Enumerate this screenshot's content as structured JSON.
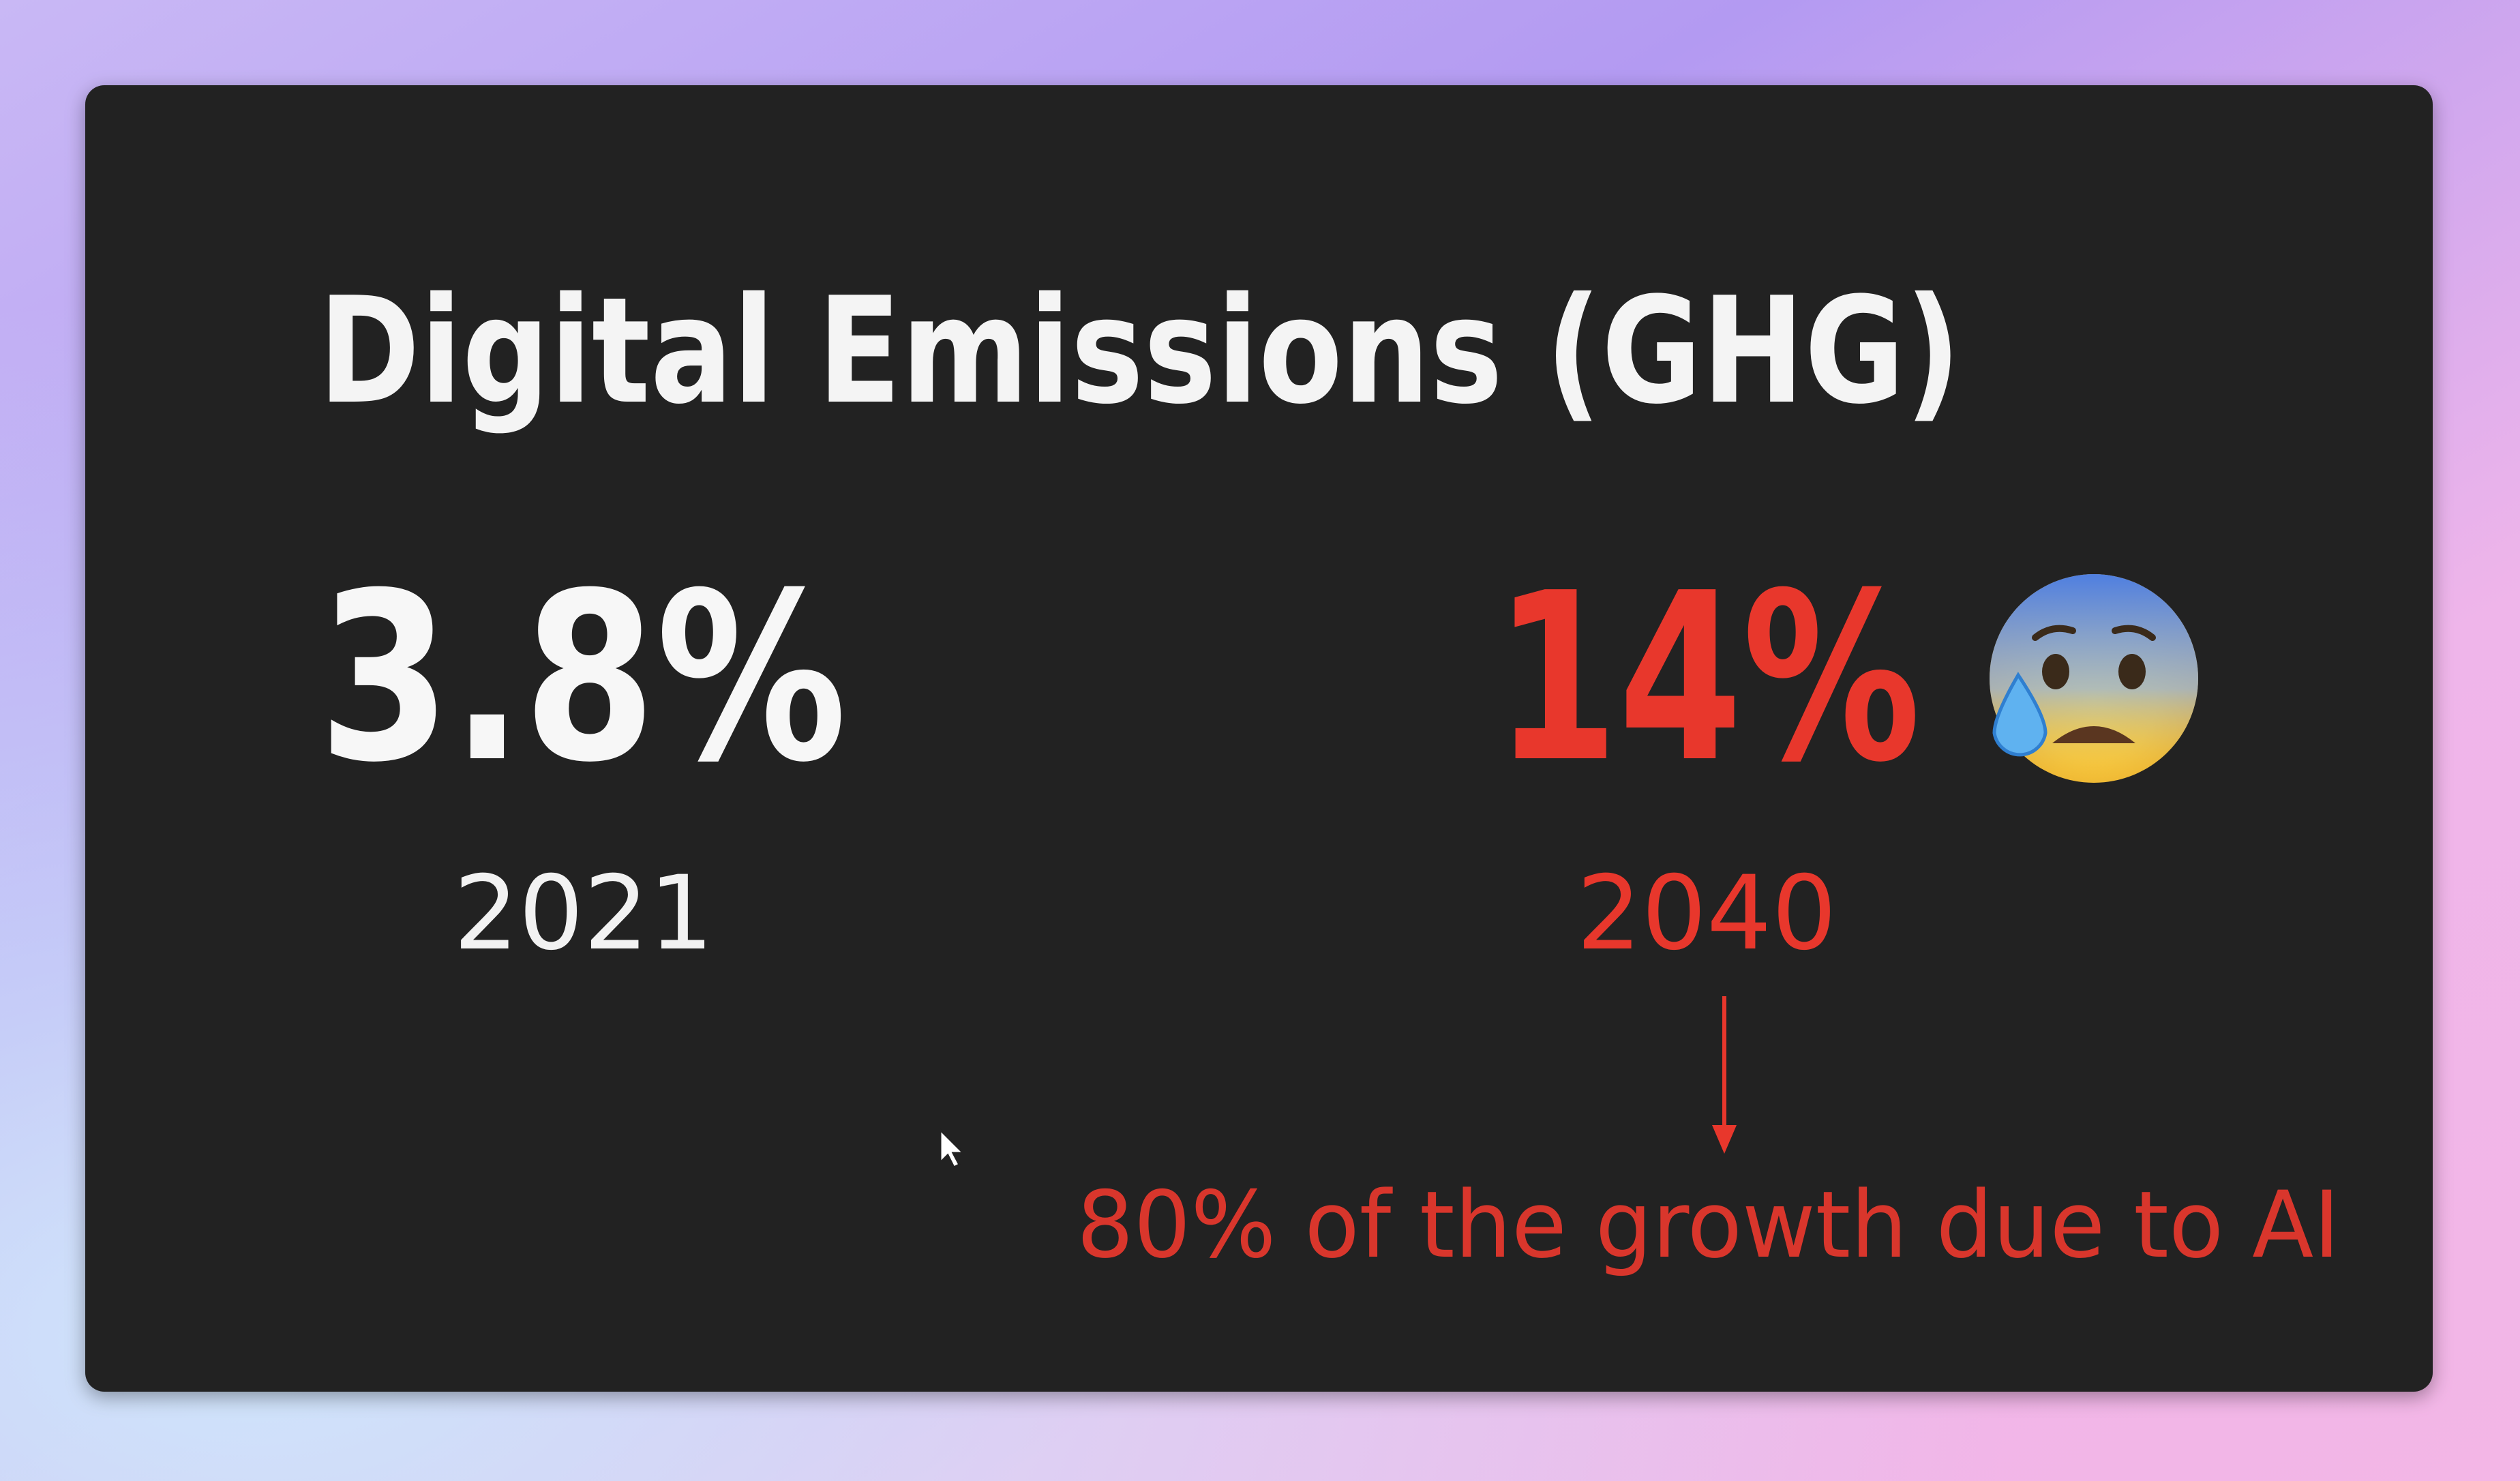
{
  "slide": {
    "title": "Digital Emissions (GHG)",
    "stats": [
      {
        "value": "3.8%",
        "year": "2021"
      },
      {
        "value": "14%",
        "year": "2040"
      }
    ],
    "note": "80% of the growth due to AI"
  }
}
